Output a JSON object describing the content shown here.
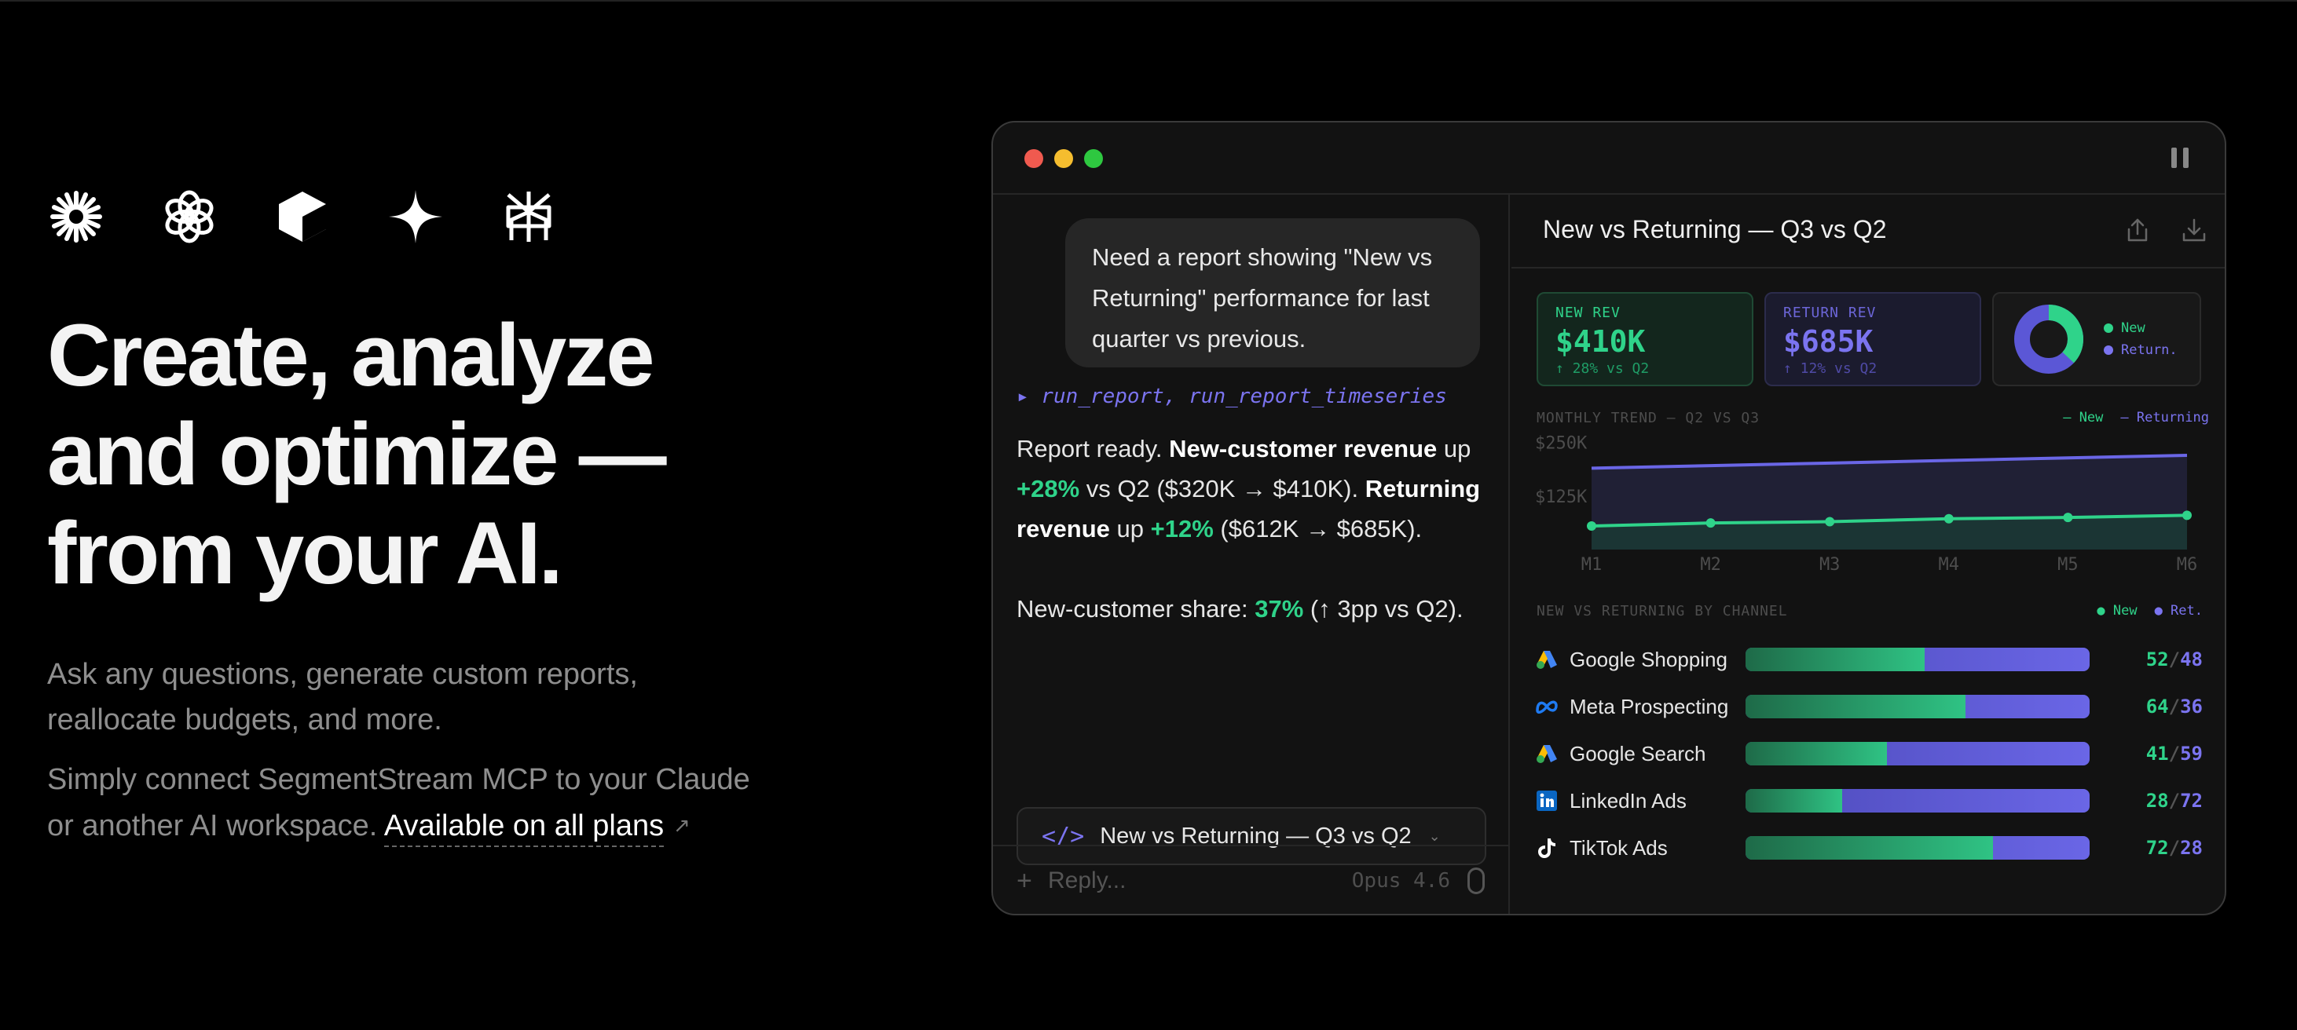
{
  "hero": {
    "headline": [
      "Create, analyze",
      "and optimize —",
      "from your AI."
    ],
    "sub1_lines": [
      "Ask any questions, generate custom reports,",
      "reallocate budgets, and more."
    ],
    "sub2_line1": "Simply connect SegmentStream MCP to your Claude",
    "sub2_line2_prefix": "or another AI workspace.",
    "plans_link": "Available on all plans",
    "plans_link_icon": "↗",
    "logo_icons": [
      "claude-icon",
      "openai-icon",
      "cube-icon",
      "sparkle-icon",
      "perplexity-icon"
    ]
  },
  "window": {
    "pause_icon": "pause-icon"
  },
  "chat": {
    "user_message": "Need a report showing \"New vs Returning\" performance for last quarter vs previous.",
    "tool_call": "▸ run_report, run_report_timeseries",
    "reply": {
      "p1_a": "Report ready. ",
      "p1_b": "New-customer revenue",
      "p1_c": " up ",
      "p1_d": "+28%",
      "p1_e": " vs Q2 ($320K → $410K). ",
      "p1_f": "Returning revenue",
      "p1_g": " up ",
      "p1_h": "+12%",
      "p1_i": " ($612K → $685K).",
      "p2_a": "New-customer share: ",
      "p2_b": "37%",
      "p2_c": " (↑ 3pp vs Q2)."
    },
    "artifact_icon": "</>",
    "artifact_label": "New vs Returning — Q3 vs Q2",
    "artifact_chevron": "⌄",
    "composer_plus": "+",
    "composer_placeholder": "Reply...",
    "model_label": "Opus 4.6"
  },
  "report": {
    "title": "New vs Returning — Q3 vs Q2",
    "kpis": {
      "new_label": "NEW REV",
      "new_value": "$410K",
      "new_delta": "↑ 28% vs Q2",
      "ret_label": "RETURN REV",
      "ret_value": "$685K",
      "ret_delta": "↑ 12% vs Q2",
      "pie_legend_new": "New",
      "pie_legend_ret": "Return.",
      "pie_new_share": 0.37
    },
    "trend_label": "MONTHLY TREND — Q2 VS Q3",
    "trend_legend_new": "— New",
    "trend_legend_ret": "— Returning",
    "channels_label": "NEW VS RETURNING BY CHANNEL",
    "channels_legend_new": "● New",
    "channels_legend_ret": "● Ret.",
    "channels": [
      {
        "name": "Google Shopping",
        "new": 52,
        "ret": 48,
        "icon": "google-ads-icon"
      },
      {
        "name": "Meta Prospecting",
        "new": 64,
        "ret": 36,
        "icon": "meta-icon"
      },
      {
        "name": "Google Search",
        "new": 41,
        "ret": 59,
        "icon": "google-ads-icon"
      },
      {
        "name": "LinkedIn Ads",
        "new": 28,
        "ret": 72,
        "icon": "linkedin-icon"
      },
      {
        "name": "TikTok Ads",
        "new": 72,
        "ret": 28,
        "icon": "tiktok-icon"
      }
    ]
  },
  "chart_data": {
    "type": "line",
    "title": "MONTHLY TREND — Q2 VS Q3",
    "categories": [
      "M1",
      "M2",
      "M3",
      "M4",
      "M5",
      "M6"
    ],
    "y_ticks": [
      "$250K",
      "$125K"
    ],
    "ylim": [
      0,
      275
    ],
    "grid": false,
    "legend_position": "top-right",
    "series": [
      {
        "name": "New",
        "values": [
          55,
          62,
          65,
          72,
          75,
          80
        ],
        "color": "#2fd38a"
      },
      {
        "name": "Returning",
        "values": [
          190,
          196,
          202,
          208,
          214,
          220
        ],
        "color": "#6a66e6"
      }
    ]
  },
  "colors": {
    "accent_new": "#2fd38a",
    "accent_ret": "#7b74f0",
    "background": "#000000",
    "window": "#121212"
  }
}
